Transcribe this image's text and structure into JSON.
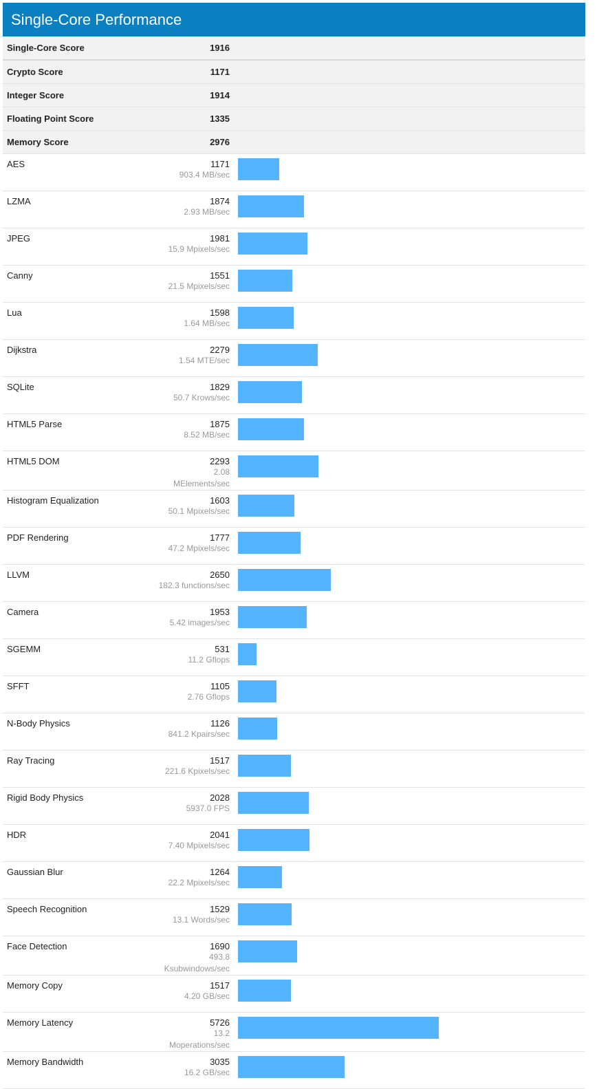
{
  "title": "Single-Core Performance",
  "colors": {
    "header_bg": "#0a7fc1",
    "bar": "#55b4ff"
  },
  "bar_scale_max": 5726,
  "summary": [
    {
      "label": "Single-Core Score",
      "score": "1916"
    },
    {
      "label": "Crypto Score",
      "score": "1171"
    },
    {
      "label": "Integer Score",
      "score": "1914"
    },
    {
      "label": "Floating Point Score",
      "score": "1335"
    },
    {
      "label": "Memory Score",
      "score": "2976"
    }
  ],
  "benchmarks": [
    {
      "name": "AES",
      "score": "1171",
      "detail": "903.4 MB/sec"
    },
    {
      "name": "LZMA",
      "score": "1874",
      "detail": "2.93 MB/sec"
    },
    {
      "name": "JPEG",
      "score": "1981",
      "detail": "15.9 Mpixels/sec"
    },
    {
      "name": "Canny",
      "score": "1551",
      "detail": "21.5 Mpixels/sec"
    },
    {
      "name": "Lua",
      "score": "1598",
      "detail": "1.64 MB/sec"
    },
    {
      "name": "Dijkstra",
      "score": "2279",
      "detail": "1.54 MTE/sec"
    },
    {
      "name": "SQLite",
      "score": "1829",
      "detail": "50.7 Krows/sec"
    },
    {
      "name": "HTML5 Parse",
      "score": "1875",
      "detail": "8.52 MB/sec"
    },
    {
      "name": "HTML5 DOM",
      "score": "2293",
      "detail": "2.08 MElements/sec"
    },
    {
      "name": "Histogram Equalization",
      "score": "1603",
      "detail": "50.1 Mpixels/sec"
    },
    {
      "name": "PDF Rendering",
      "score": "1777",
      "detail": "47.2 Mpixels/sec"
    },
    {
      "name": "LLVM",
      "score": "2650",
      "detail": "182.3 functions/sec"
    },
    {
      "name": "Camera",
      "score": "1953",
      "detail": "5.42 images/sec"
    },
    {
      "name": "SGEMM",
      "score": "531",
      "detail": "11.2 Gflops"
    },
    {
      "name": "SFFT",
      "score": "1105",
      "detail": "2.76 Gflops"
    },
    {
      "name": "N-Body Physics",
      "score": "1126",
      "detail": "841.2 Kpairs/sec"
    },
    {
      "name": "Ray Tracing",
      "score": "1517",
      "detail": "221.6 Kpixels/sec"
    },
    {
      "name": "Rigid Body Physics",
      "score": "2028",
      "detail": "5937.0 FPS"
    },
    {
      "name": "HDR",
      "score": "2041",
      "detail": "7.40 Mpixels/sec"
    },
    {
      "name": "Gaussian Blur",
      "score": "1264",
      "detail": "22.2 Mpixels/sec"
    },
    {
      "name": "Speech Recognition",
      "score": "1529",
      "detail": "13.1 Words/sec"
    },
    {
      "name": "Face Detection",
      "score": "1690",
      "detail": "493.8 Ksubwindows/sec"
    },
    {
      "name": "Memory Copy",
      "score": "1517",
      "detail": "4.20 GB/sec"
    },
    {
      "name": "Memory Latency",
      "score": "5726",
      "detail": "13.2 Moperations/sec"
    },
    {
      "name": "Memory Bandwidth",
      "score": "3035",
      "detail": "16.2 GB/sec"
    }
  ]
}
